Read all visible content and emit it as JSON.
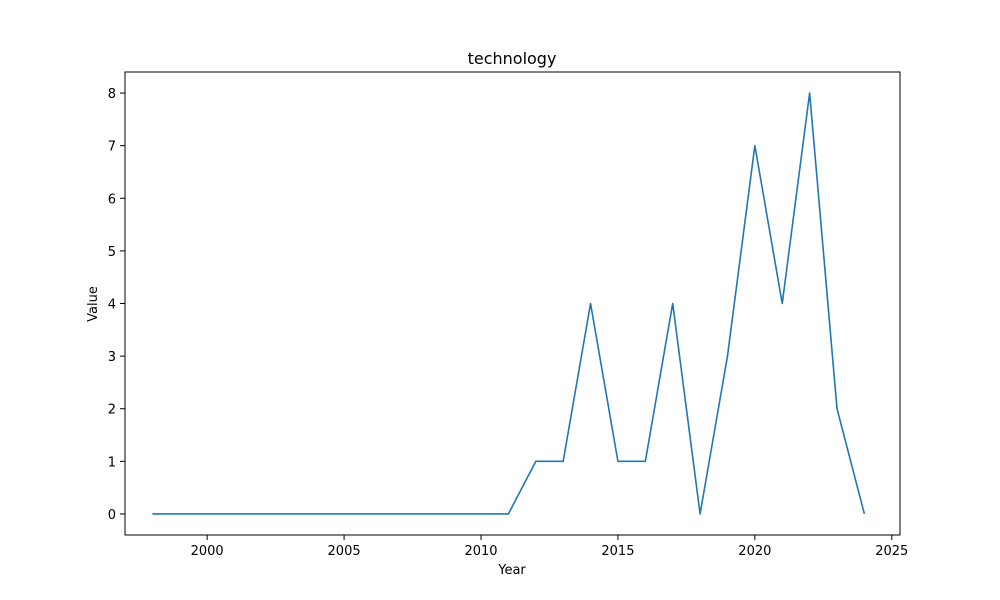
{
  "chart_data": {
    "type": "line",
    "title": "technology",
    "xlabel": "Year",
    "ylabel": "Value",
    "xlim": [
      1997,
      2025.3
    ],
    "ylim": [
      -0.4,
      8.4
    ],
    "xticks": [
      2000,
      2005,
      2010,
      2015,
      2020,
      2025
    ],
    "yticks": [
      0,
      1,
      2,
      3,
      4,
      5,
      6,
      7,
      8
    ],
    "grid": false,
    "series": [
      {
        "color": "#1f77b4",
        "x": [
          1998,
          1999,
          2000,
          2001,
          2002,
          2003,
          2004,
          2005,
          2006,
          2007,
          2008,
          2009,
          2010,
          2011,
          2012,
          2013,
          2014,
          2015,
          2016,
          2017,
          2018,
          2019,
          2020,
          2021,
          2022,
          2023,
          2024
        ],
        "y": [
          0,
          0,
          0,
          0,
          0,
          0,
          0,
          0,
          0,
          0,
          0,
          0,
          0,
          0,
          1,
          1,
          4,
          1,
          1,
          4,
          0,
          3,
          7,
          4,
          8,
          2,
          0
        ]
      }
    ]
  }
}
